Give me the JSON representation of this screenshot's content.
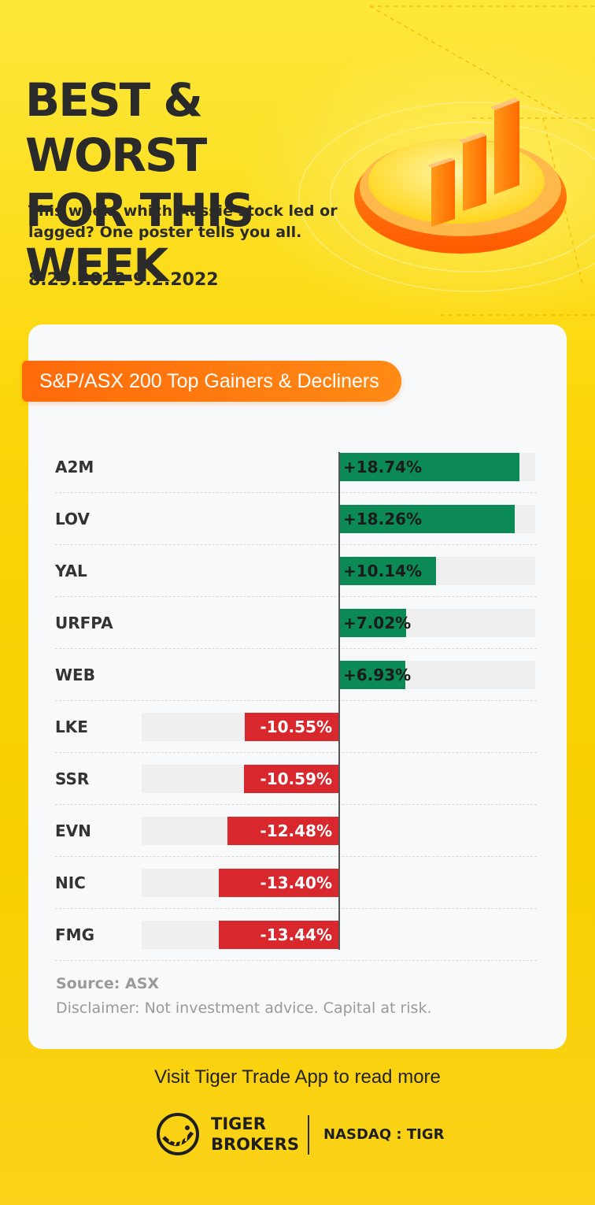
{
  "header": {
    "title_line1": "BEST & WORST",
    "title_line2": "FOR THIS WEEK",
    "subtitle": "This week, which Aussie stock led or lagged? One poster tells you all.",
    "date_range": "8.29.2022-9.2.2022"
  },
  "card": {
    "tag": "S&P/ASX 200 Top Gainers & Decliners",
    "source": "Source: ASX",
    "disclaimer": "Disclaimer: Not investment advice. Capital at risk."
  },
  "footer": {
    "visit": "Visit Tiger Trade App to read more",
    "brand_line1": "TIGER",
    "brand_line2": "BROKERS",
    "exchange": "NASDAQ : TIGR"
  },
  "colors": {
    "background": "#fbd400",
    "gain": "#0b8a55",
    "loss": "#d8282d",
    "tag": "#ff6a0a"
  },
  "chart_data": {
    "type": "bar",
    "orientation": "horizontal",
    "title": "S&P/ASX 200 Top Gainers & Decliners",
    "categories": [
      "A2M",
      "LOV",
      "YAL",
      "URFPA",
      "WEB",
      "LKE",
      "SSR",
      "EVN",
      "NIC",
      "FMG"
    ],
    "values": [
      18.74,
      18.26,
      10.14,
      7.02,
      6.93,
      -10.55,
      -10.59,
      -12.48,
      -13.4,
      -13.44
    ],
    "labels": [
      "+18.74%",
      "+18.26%",
      "+10.14%",
      "+7.02%",
      "+6.93%",
      "-10.55%",
      "-10.59%",
      "-12.48%",
      "-13.40%",
      "-13.44%"
    ],
    "unit": "%",
    "xlim": [
      -16,
      20
    ]
  }
}
